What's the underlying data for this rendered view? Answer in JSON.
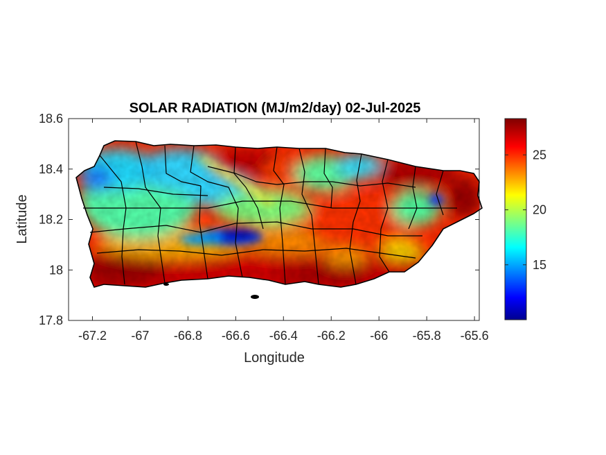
{
  "figure": {
    "title": "SOLAR RADIATION (MJ/m2/day) 02-Jul-2025",
    "xlabel": "Longitude",
    "ylabel": "Latitude"
  },
  "chart_data": {
    "type": "heatmap",
    "title": "SOLAR RADIATION (MJ/m2/day) 02-Jul-2025",
    "xlabel": "Longitude",
    "ylabel": "Latitude",
    "xlim": [
      -67.3,
      -65.58
    ],
    "ylim": [
      17.8,
      18.6
    ],
    "x_ticks": [
      -67.2,
      -67,
      -66.8,
      -66.6,
      -66.4,
      -66.2,
      -66,
      -65.8,
      -65.6
    ],
    "x_tick_labels": [
      "-67.2",
      "-67",
      "-66.8",
      "-66.6",
      "-66.4",
      "-66.2",
      "-66",
      "-65.8",
      "-65.6"
    ],
    "y_ticks": [
      17.8,
      18,
      18.2,
      18.4,
      18.6
    ],
    "y_tick_labels": [
      "17.8",
      "18",
      "18.2",
      "18.4",
      "18.6"
    ],
    "colorbar": {
      "colormap": "jet",
      "range": [
        10,
        28.3
      ],
      "ticks": [
        15,
        20,
        25
      ],
      "tick_labels": [
        "15",
        "20",
        "25"
      ]
    },
    "grid": false,
    "regions": [
      {
        "area": "south coast",
        "level": "high",
        "approx_value": 27
      },
      {
        "area": "north-east coast",
        "level": "high",
        "approx_value": 28
      },
      {
        "area": "central interior band",
        "level": "low",
        "approx_value": 12
      },
      {
        "area": "north-west",
        "level": "medium",
        "approx_value": 18
      },
      {
        "area": "east-central",
        "level": "high",
        "approx_value": 26
      }
    ]
  }
}
